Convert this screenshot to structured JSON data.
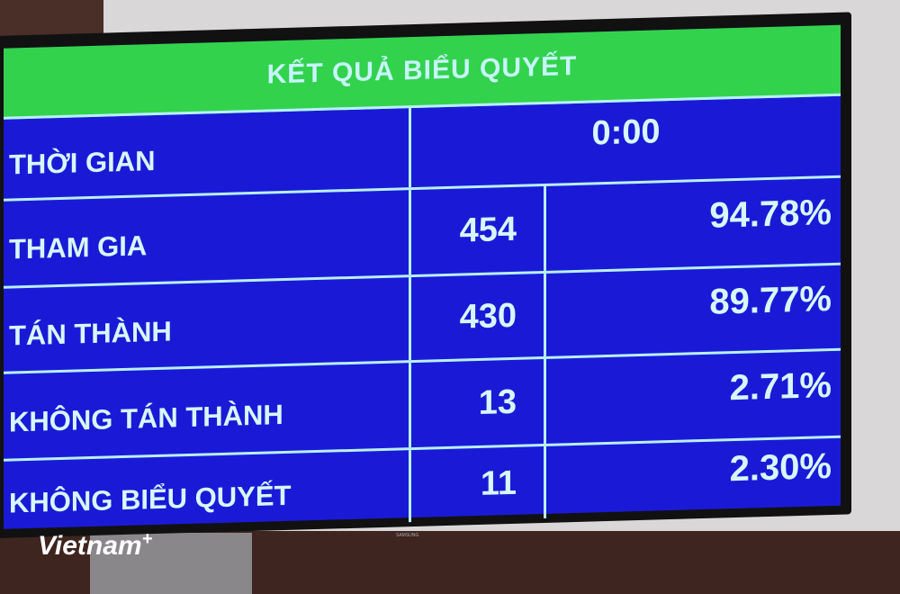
{
  "board": {
    "title": "KẾT QUẢ BIỂU QUYẾT",
    "time": {
      "label": "THỜI GIAN",
      "value": "0:00"
    },
    "rows": [
      {
        "label": "THAM GIA",
        "count": "454",
        "percent": "94.78%"
      },
      {
        "label": "TÁN THÀNH",
        "count": "430",
        "percent": "89.77%"
      },
      {
        "label": "KHÔNG TÁN THÀNH",
        "count": "13",
        "percent": "2.71%"
      },
      {
        "label": "KHÔNG BIỂU QUYẾT",
        "count": "11",
        "percent": "2.30%"
      }
    ]
  },
  "tv_brand": "SAMSUNG",
  "watermark": {
    "text": "Vietnam",
    "suffix": "+"
  },
  "colors": {
    "header": "#33d24c",
    "body": "#1a1ad6",
    "text": "#d8f6ff"
  }
}
